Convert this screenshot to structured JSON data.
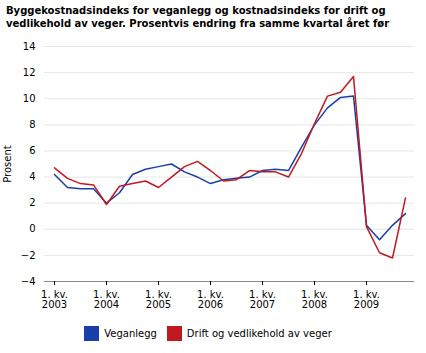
{
  "chart_data": {
    "type": "line",
    "title": "Byggekostnadsindeks for veganlegg og kostnadsindeks for drift og\nvedlikehold av veger. Prosentvis endring fra samme kvartal året før",
    "y_label": "Prosent",
    "categories": [
      "1. kv.\n2003",
      null,
      null,
      null,
      "1. kv.\n2004",
      null,
      null,
      null,
      "1. kv.\n2005",
      null,
      null,
      null,
      "1. kv.\n2006",
      null,
      null,
      null,
      "1. kv.\n2007",
      null,
      null,
      null,
      "1. kv.\n2008",
      null,
      null,
      null,
      "1. kv.\n2009",
      null,
      null,
      null
    ],
    "series": [
      {
        "name": "Veganlegg",
        "color": "#1a3faa",
        "values": [
          4.2,
          3.2,
          3.1,
          3.1,
          2.0,
          2.8,
          4.2,
          4.6,
          4.8,
          5.0,
          4.4,
          4.0,
          3.5,
          3.8,
          3.9,
          4.0,
          4.5,
          4.6,
          4.5,
          6.3,
          8.0,
          9.3,
          10.1,
          10.2,
          0.3,
          -0.8,
          0.3,
          1.2
        ]
      },
      {
        "name": "Drift og vedlikehold av veger",
        "color": "#c0191e",
        "values": [
          4.7,
          3.9,
          3.5,
          3.4,
          1.9,
          3.3,
          3.5,
          3.7,
          3.2,
          4.0,
          4.8,
          5.2,
          4.5,
          3.7,
          3.8,
          4.5,
          4.4,
          4.4,
          4.0,
          5.8,
          8.1,
          10.2,
          10.5,
          11.7,
          0.2,
          -1.8,
          -2.2,
          2.4
        ]
      }
    ],
    "ylim": [
      -4,
      14
    ],
    "yticks": [
      -4,
      -2,
      0,
      2,
      4,
      6,
      8,
      10,
      12,
      14
    ],
    "grid": true,
    "legend": "bottom"
  }
}
